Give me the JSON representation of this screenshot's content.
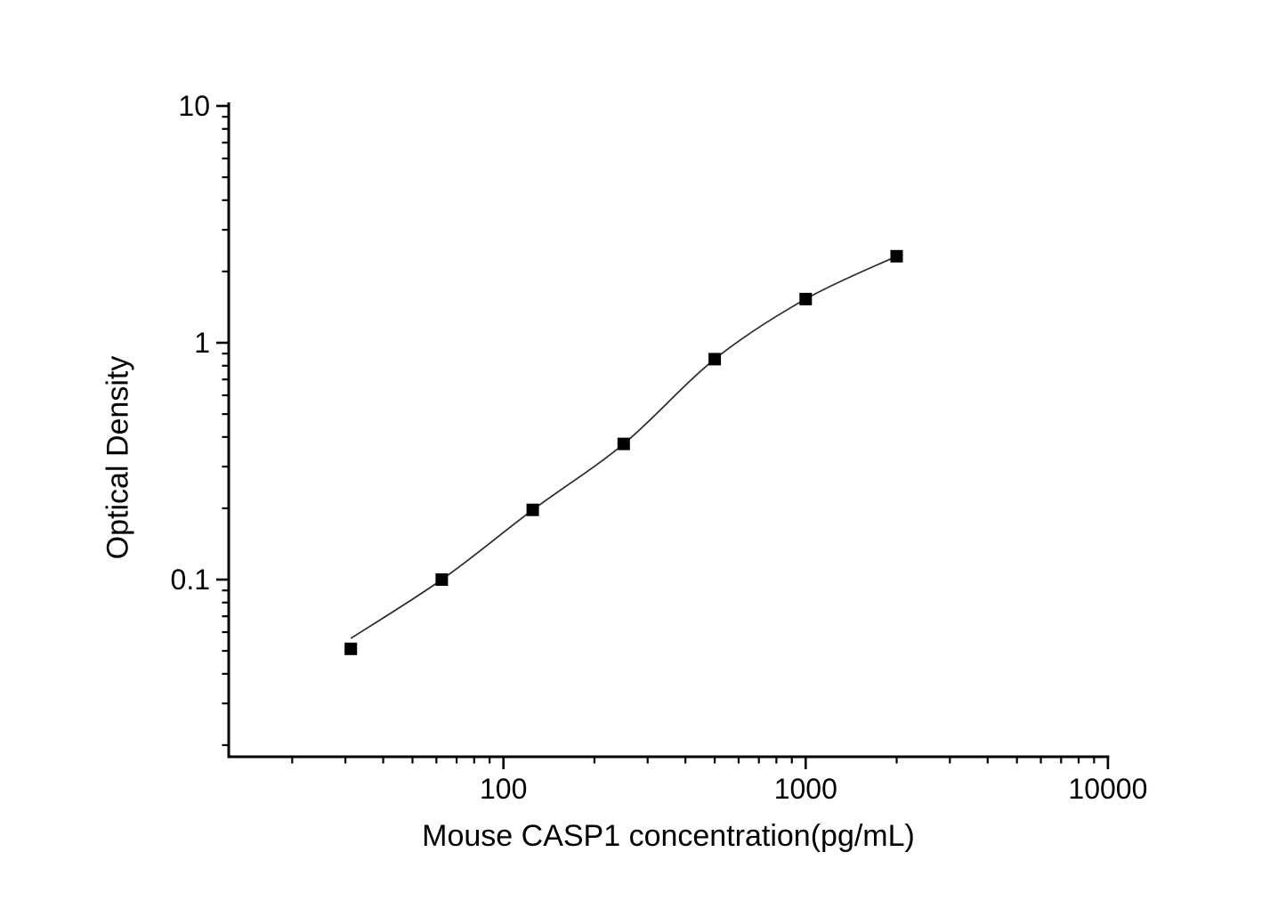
{
  "page": {
    "background": "#ffffff",
    "text_color": "#000000"
  },
  "chart_data": {
    "type": "scatter",
    "title": "",
    "xlabel": "Mouse CASP1 concentration(pg/mL)",
    "ylabel": "Optical Density",
    "x_scale": "log",
    "y_scale": "log",
    "xlim": [
      12.4,
      10000
    ],
    "ylim": [
      0.018,
      10
    ],
    "grid": false,
    "legend": "none",
    "axis_color": "#000000",
    "curve_color": "#2b2b2b",
    "marker_color": "#000000",
    "marker_shape": "filled-square",
    "x_ticks": {
      "major": [
        {
          "value": 100,
          "label": "100"
        },
        {
          "value": 1000,
          "label": "1000"
        },
        {
          "value": 10000,
          "label": "10000"
        }
      ],
      "minor": [
        20,
        30,
        40,
        50,
        60,
        70,
        80,
        90,
        200,
        300,
        400,
        500,
        600,
        700,
        800,
        900,
        2000,
        3000,
        4000,
        5000,
        6000,
        7000,
        8000,
        9000
      ]
    },
    "y_ticks": {
      "major": [
        {
          "value": 10,
          "label": "10"
        },
        {
          "value": 1,
          "label": "1"
        },
        {
          "value": 0.1,
          "label": "0.1"
        }
      ],
      "minor": [
        0.02,
        0.03,
        0.04,
        0.05,
        0.06,
        0.07,
        0.08,
        0.09,
        0.2,
        0.3,
        0.4,
        0.5,
        0.6,
        0.7,
        0.8,
        0.9,
        2,
        3,
        4,
        5,
        6,
        7,
        8,
        9
      ]
    },
    "series": [
      {
        "name": "standard-points",
        "type": "scatter",
        "points": [
          {
            "x": 31.25,
            "y": 0.051
          },
          {
            "x": 62.5,
            "y": 0.1
          },
          {
            "x": 125,
            "y": 0.197
          },
          {
            "x": 250,
            "y": 0.374
          },
          {
            "x": 500,
            "y": 0.853
          },
          {
            "x": 1000,
            "y": 1.53
          },
          {
            "x": 2000,
            "y": 2.32
          }
        ]
      },
      {
        "name": "fit-curve",
        "type": "line",
        "points": [
          {
            "x": 31.25,
            "y": 0.0565
          },
          {
            "x": 62.5,
            "y": 0.1
          },
          {
            "x": 125,
            "y": 0.197
          },
          {
            "x": 250,
            "y": 0.374
          },
          {
            "x": 500,
            "y": 0.853
          },
          {
            "x": 1000,
            "y": 1.53
          },
          {
            "x": 2000,
            "y": 2.32
          }
        ]
      }
    ]
  }
}
